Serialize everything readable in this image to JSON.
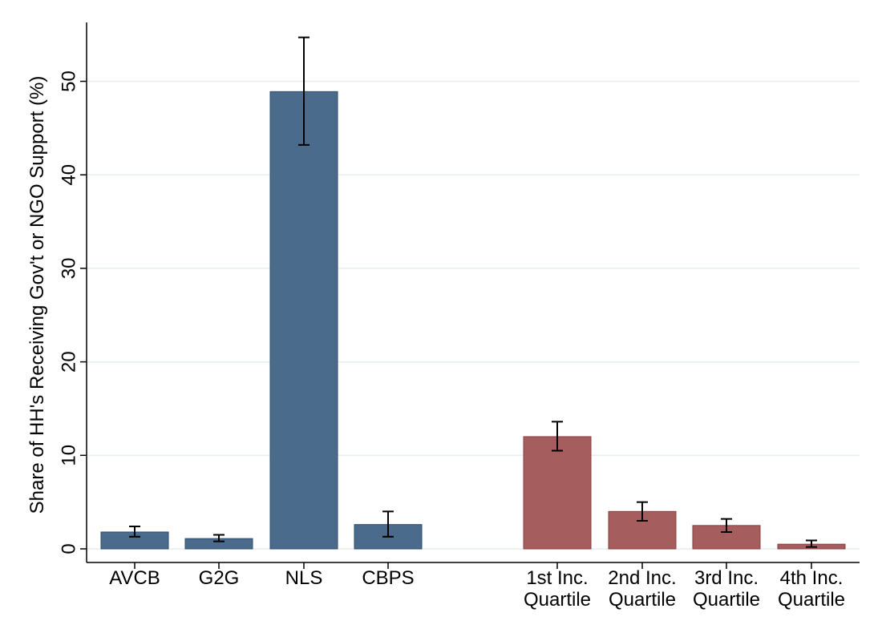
{
  "chart_data": {
    "type": "bar",
    "title": "",
    "xlabel": "",
    "ylabel": "Share of HH's Receiving Gov't or NGO Support (%)",
    "ylim": [
      0,
      55
    ],
    "yticks": [
      0,
      10,
      20,
      30,
      40,
      50
    ],
    "grid": true,
    "categories": [
      {
        "label": [
          "AVCB"
        ],
        "value": 1.8,
        "ci": [
          1.3,
          2.4
        ],
        "group": "program",
        "color": "#4a6b8c"
      },
      {
        "label": [
          "G2G"
        ],
        "value": 1.1,
        "ci": [
          0.8,
          1.5
        ],
        "group": "program",
        "color": "#4a6b8c"
      },
      {
        "label": [
          "NLS"
        ],
        "value": 48.9,
        "ci": [
          43.2,
          54.7
        ],
        "group": "program",
        "color": "#4a6b8c"
      },
      {
        "label": [
          "CBPS"
        ],
        "value": 2.6,
        "ci": [
          1.3,
          4.0
        ],
        "group": "program",
        "color": "#4a6b8c"
      },
      {
        "label": [
          "1st Inc.",
          "Quartile"
        ],
        "value": 12.0,
        "ci": [
          10.5,
          13.6
        ],
        "group": "income",
        "color": "#a55d5e"
      },
      {
        "label": [
          "2nd Inc.",
          "Quartile"
        ],
        "value": 4.0,
        "ci": [
          3.0,
          5.0
        ],
        "group": "income",
        "color": "#a55d5e"
      },
      {
        "label": [
          "3rd Inc.",
          "Quartile"
        ],
        "value": 2.5,
        "ci": [
          1.8,
          3.2
        ],
        "group": "income",
        "color": "#a55d5e"
      },
      {
        "label": [
          "4th Inc.",
          "Quartile"
        ],
        "value": 0.5,
        "ci": [
          0.2,
          0.9
        ],
        "group": "income",
        "color": "#a55d5e"
      }
    ]
  }
}
